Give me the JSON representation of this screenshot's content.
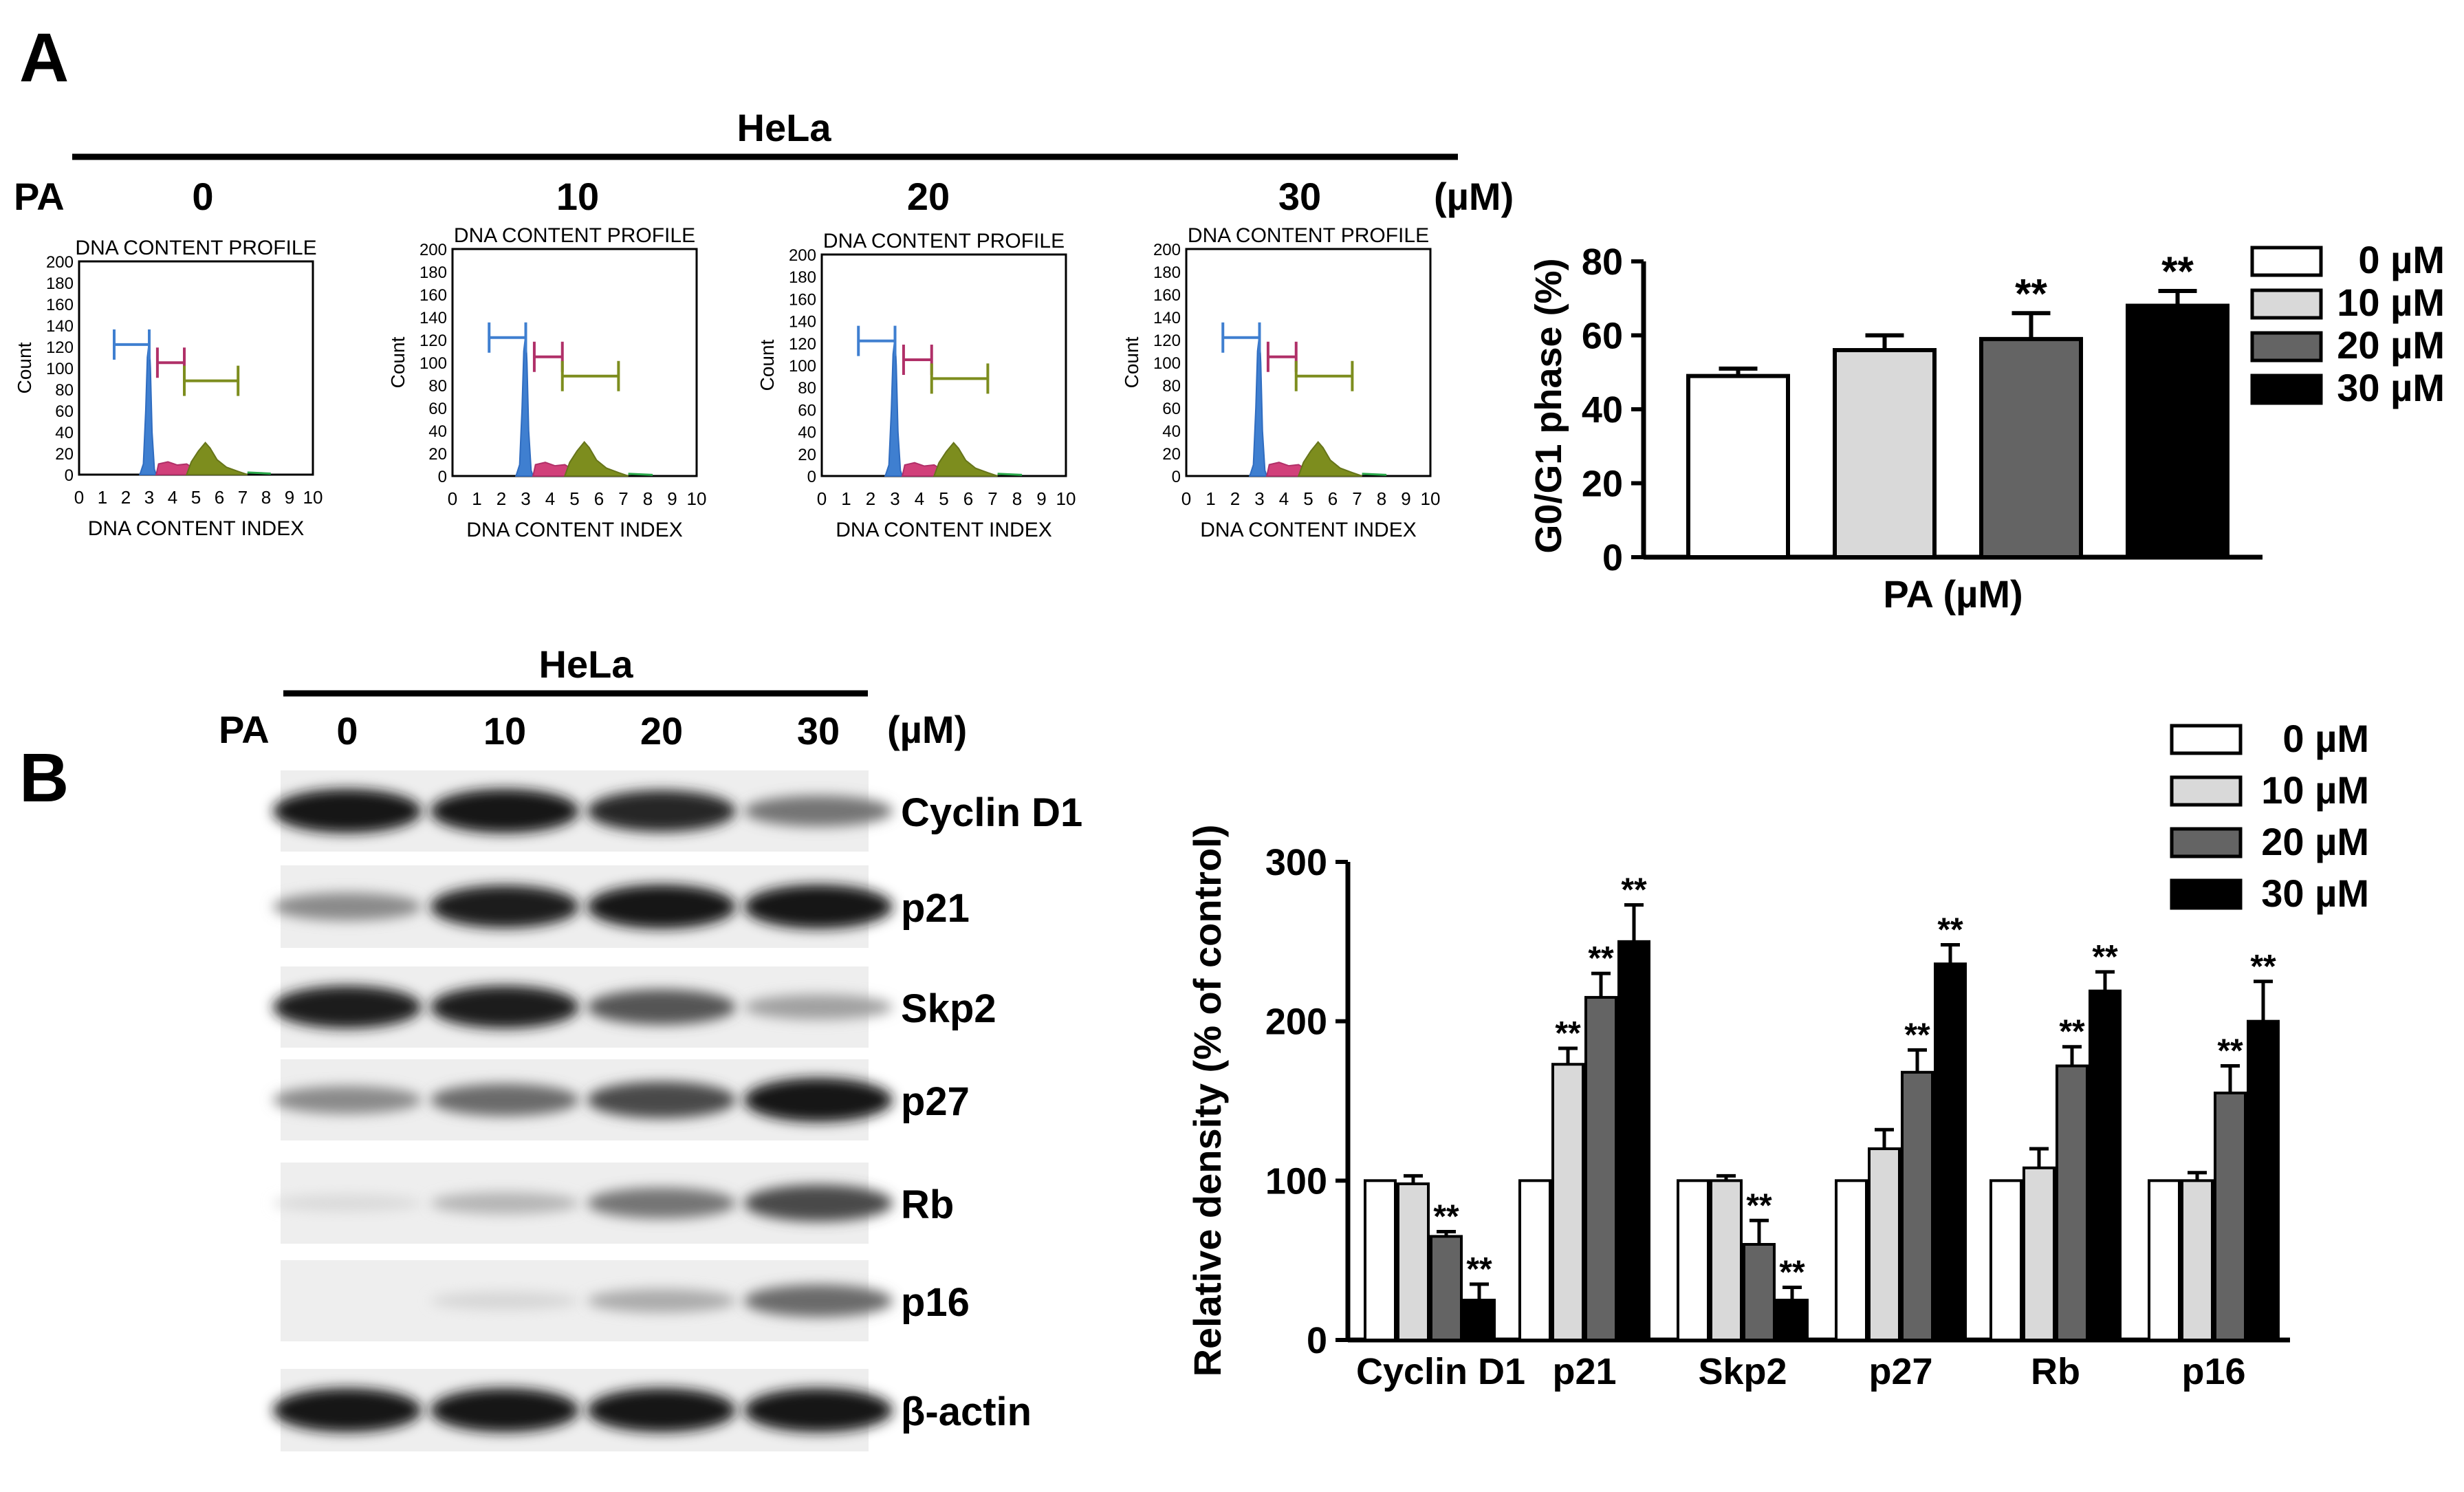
{
  "panel_a": {
    "label": "A",
    "cell_line": "HeLa",
    "treatment": "PA",
    "unit": "(µM)",
    "doses": [
      "0",
      "10",
      "20",
      "30"
    ],
    "histograms": [
      {
        "title": "DNA CONTENT PROFILE",
        "xlabel": "DNA CONTENT INDEX",
        "ylabel": "Count",
        "yticks": [
          "0",
          "20",
          "40",
          "60",
          "80",
          "100",
          "120",
          "140",
          "160",
          "180",
          "200"
        ],
        "xticks": [
          "0",
          "1",
          "2",
          "3",
          "4",
          "5",
          "6",
          "7",
          "8",
          "9",
          "10"
        ]
      },
      {
        "title": "DNA CONTENT PROFILE",
        "xlabel": "DNA CONTENT INDEX",
        "ylabel": "Count",
        "yticks": [
          "0",
          "20",
          "40",
          "60",
          "80",
          "100",
          "120",
          "140",
          "160",
          "180",
          "200"
        ],
        "xticks": [
          "0",
          "1",
          "2",
          "3",
          "4",
          "5",
          "6",
          "7",
          "8",
          "9",
          "10"
        ]
      },
      {
        "title": "DNA CONTENT PROFILE",
        "xlabel": "DNA CONTENT INDEX",
        "ylabel": "Count",
        "yticks": [
          "0",
          "20",
          "40",
          "60",
          "80",
          "100",
          "120",
          "140",
          "160",
          "180",
          "200"
        ],
        "xticks": [
          "0",
          "1",
          "2",
          "3",
          "4",
          "5",
          "6",
          "7",
          "8",
          "9",
          "10"
        ]
      },
      {
        "title": "DNA CONTENT PROFILE",
        "xlabel": "DNA CONTENT INDEX",
        "ylabel": "Count",
        "yticks": [
          "0",
          "20",
          "40",
          "60",
          "80",
          "100",
          "120",
          "140",
          "160",
          "180",
          "200"
        ],
        "xticks": [
          "0",
          "1",
          "2",
          "3",
          "4",
          "5",
          "6",
          "7",
          "8",
          "9",
          "10"
        ]
      }
    ]
  },
  "panel_b": {
    "label": "B",
    "cell_line": "HeLa",
    "treatment": "PA",
    "unit": "(µM)",
    "doses": [
      "0",
      "10",
      "20",
      "30"
    ],
    "blots": [
      {
        "protein": "Cyclin D1",
        "intensity": [
          1.0,
          1.0,
          0.92,
          0.55
        ]
      },
      {
        "protein": "p21",
        "intensity": [
          0.45,
          0.95,
          1.0,
          1.0
        ]
      },
      {
        "protein": "Skp2",
        "intensity": [
          0.95,
          0.95,
          0.7,
          0.35
        ]
      },
      {
        "protein": "p27",
        "intensity": [
          0.45,
          0.6,
          0.75,
          1.0
        ]
      },
      {
        "protein": "Rb",
        "intensity": [
          0.08,
          0.25,
          0.55,
          0.75
        ]
      },
      {
        "protein": "p16",
        "intensity": [
          0.0,
          0.1,
          0.3,
          0.6
        ]
      },
      {
        "protein": "β-actin",
        "intensity": [
          1.0,
          1.0,
          1.0,
          1.0
        ]
      }
    ]
  },
  "colors": {
    "0": "#ffffff",
    "10": "#d9d9d9",
    "20": "#646464",
    "30": "#000000"
  },
  "chart_data": [
    {
      "type": "bar",
      "xlabel": "PA (µM)",
      "ylabel": "G0/G1 phase (%)",
      "ylim": [
        0,
        80
      ],
      "yticks": [
        "0",
        "20",
        "40",
        "60",
        "80"
      ],
      "categories": [
        "0 µM",
        "10 µM",
        "20 µM",
        "30 µM"
      ],
      "values": [
        49,
        56,
        59,
        68
      ],
      "errors": [
        2,
        4,
        7,
        4
      ],
      "significance": [
        "",
        "",
        "**",
        "**"
      ],
      "legend": [
        "0 µM",
        "10 µM",
        "20 µM",
        "30 µM"
      ]
    },
    {
      "type": "bar",
      "ylabel": "Relative density (% of control)",
      "ylim": [
        0,
        300
      ],
      "yticks": [
        "0",
        "100",
        "200",
        "300"
      ],
      "categories": [
        "Cyclin D1",
        "p21",
        "Skp2",
        "p27",
        "Rb",
        "p16"
      ],
      "legend": [
        "0 µM",
        "10 µM",
        "20 µM",
        "30 µM"
      ],
      "series": [
        {
          "name": "0 µM",
          "values": [
            100,
            100,
            100,
            100,
            100,
            100
          ],
          "errors": [
            0,
            0,
            0,
            0,
            0,
            0
          ],
          "significance": [
            "",
            "",
            "",
            "",
            "",
            ""
          ]
        },
        {
          "name": "10 µM",
          "values": [
            98,
            173,
            100,
            120,
            108,
            100
          ],
          "errors": [
            5,
            10,
            3,
            12,
            12,
            5
          ],
          "significance": [
            "",
            "**",
            "",
            "",
            "",
            ""
          ]
        },
        {
          "name": "20 µM",
          "values": [
            65,
            215,
            60,
            168,
            172,
            155
          ],
          "errors": [
            3,
            15,
            15,
            14,
            12,
            17
          ],
          "significance": [
            "**",
            "**",
            "**",
            "**",
            "**",
            "**"
          ]
        },
        {
          "name": "30 µM",
          "values": [
            25,
            250,
            25,
            236,
            219,
            200
          ],
          "errors": [
            10,
            23,
            8,
            12,
            12,
            25
          ],
          "significance": [
            "**",
            "**",
            "**",
            "**",
            "**",
            "**"
          ]
        }
      ]
    }
  ]
}
